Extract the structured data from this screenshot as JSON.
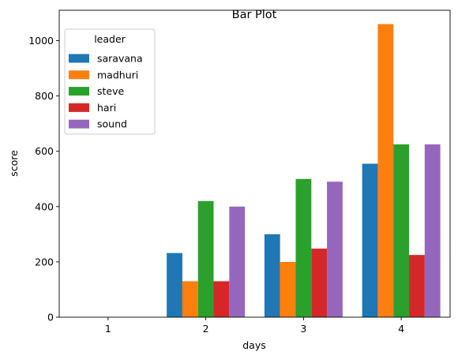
{
  "chart_data": {
    "type": "bar",
    "title": "Bar Plot",
    "xlabel": "days",
    "ylabel": "score",
    "categories": [
      "1",
      "2",
      "3",
      "4"
    ],
    "ylim": [
      0,
      1110
    ],
    "yticks": [
      0,
      200,
      400,
      600,
      800,
      1000
    ],
    "grid": false,
    "legend": {
      "title": "leader",
      "placement": "top-left"
    },
    "series": [
      {
        "name": "saravana",
        "color": "#1f77b4",
        "values": [
          0,
          232,
          300,
          555
        ]
      },
      {
        "name": "madhuri",
        "color": "#ff7f0e",
        "values": [
          0,
          130,
          200,
          1060
        ]
      },
      {
        "name": "steve",
        "color": "#2ca02c",
        "values": [
          0,
          420,
          500,
          625
        ]
      },
      {
        "name": "hari",
        "color": "#d62728",
        "values": [
          0,
          130,
          248,
          225
        ]
      },
      {
        "name": "sound",
        "color": "#9467bd",
        "values": [
          0,
          400,
          490,
          625
        ]
      }
    ]
  }
}
